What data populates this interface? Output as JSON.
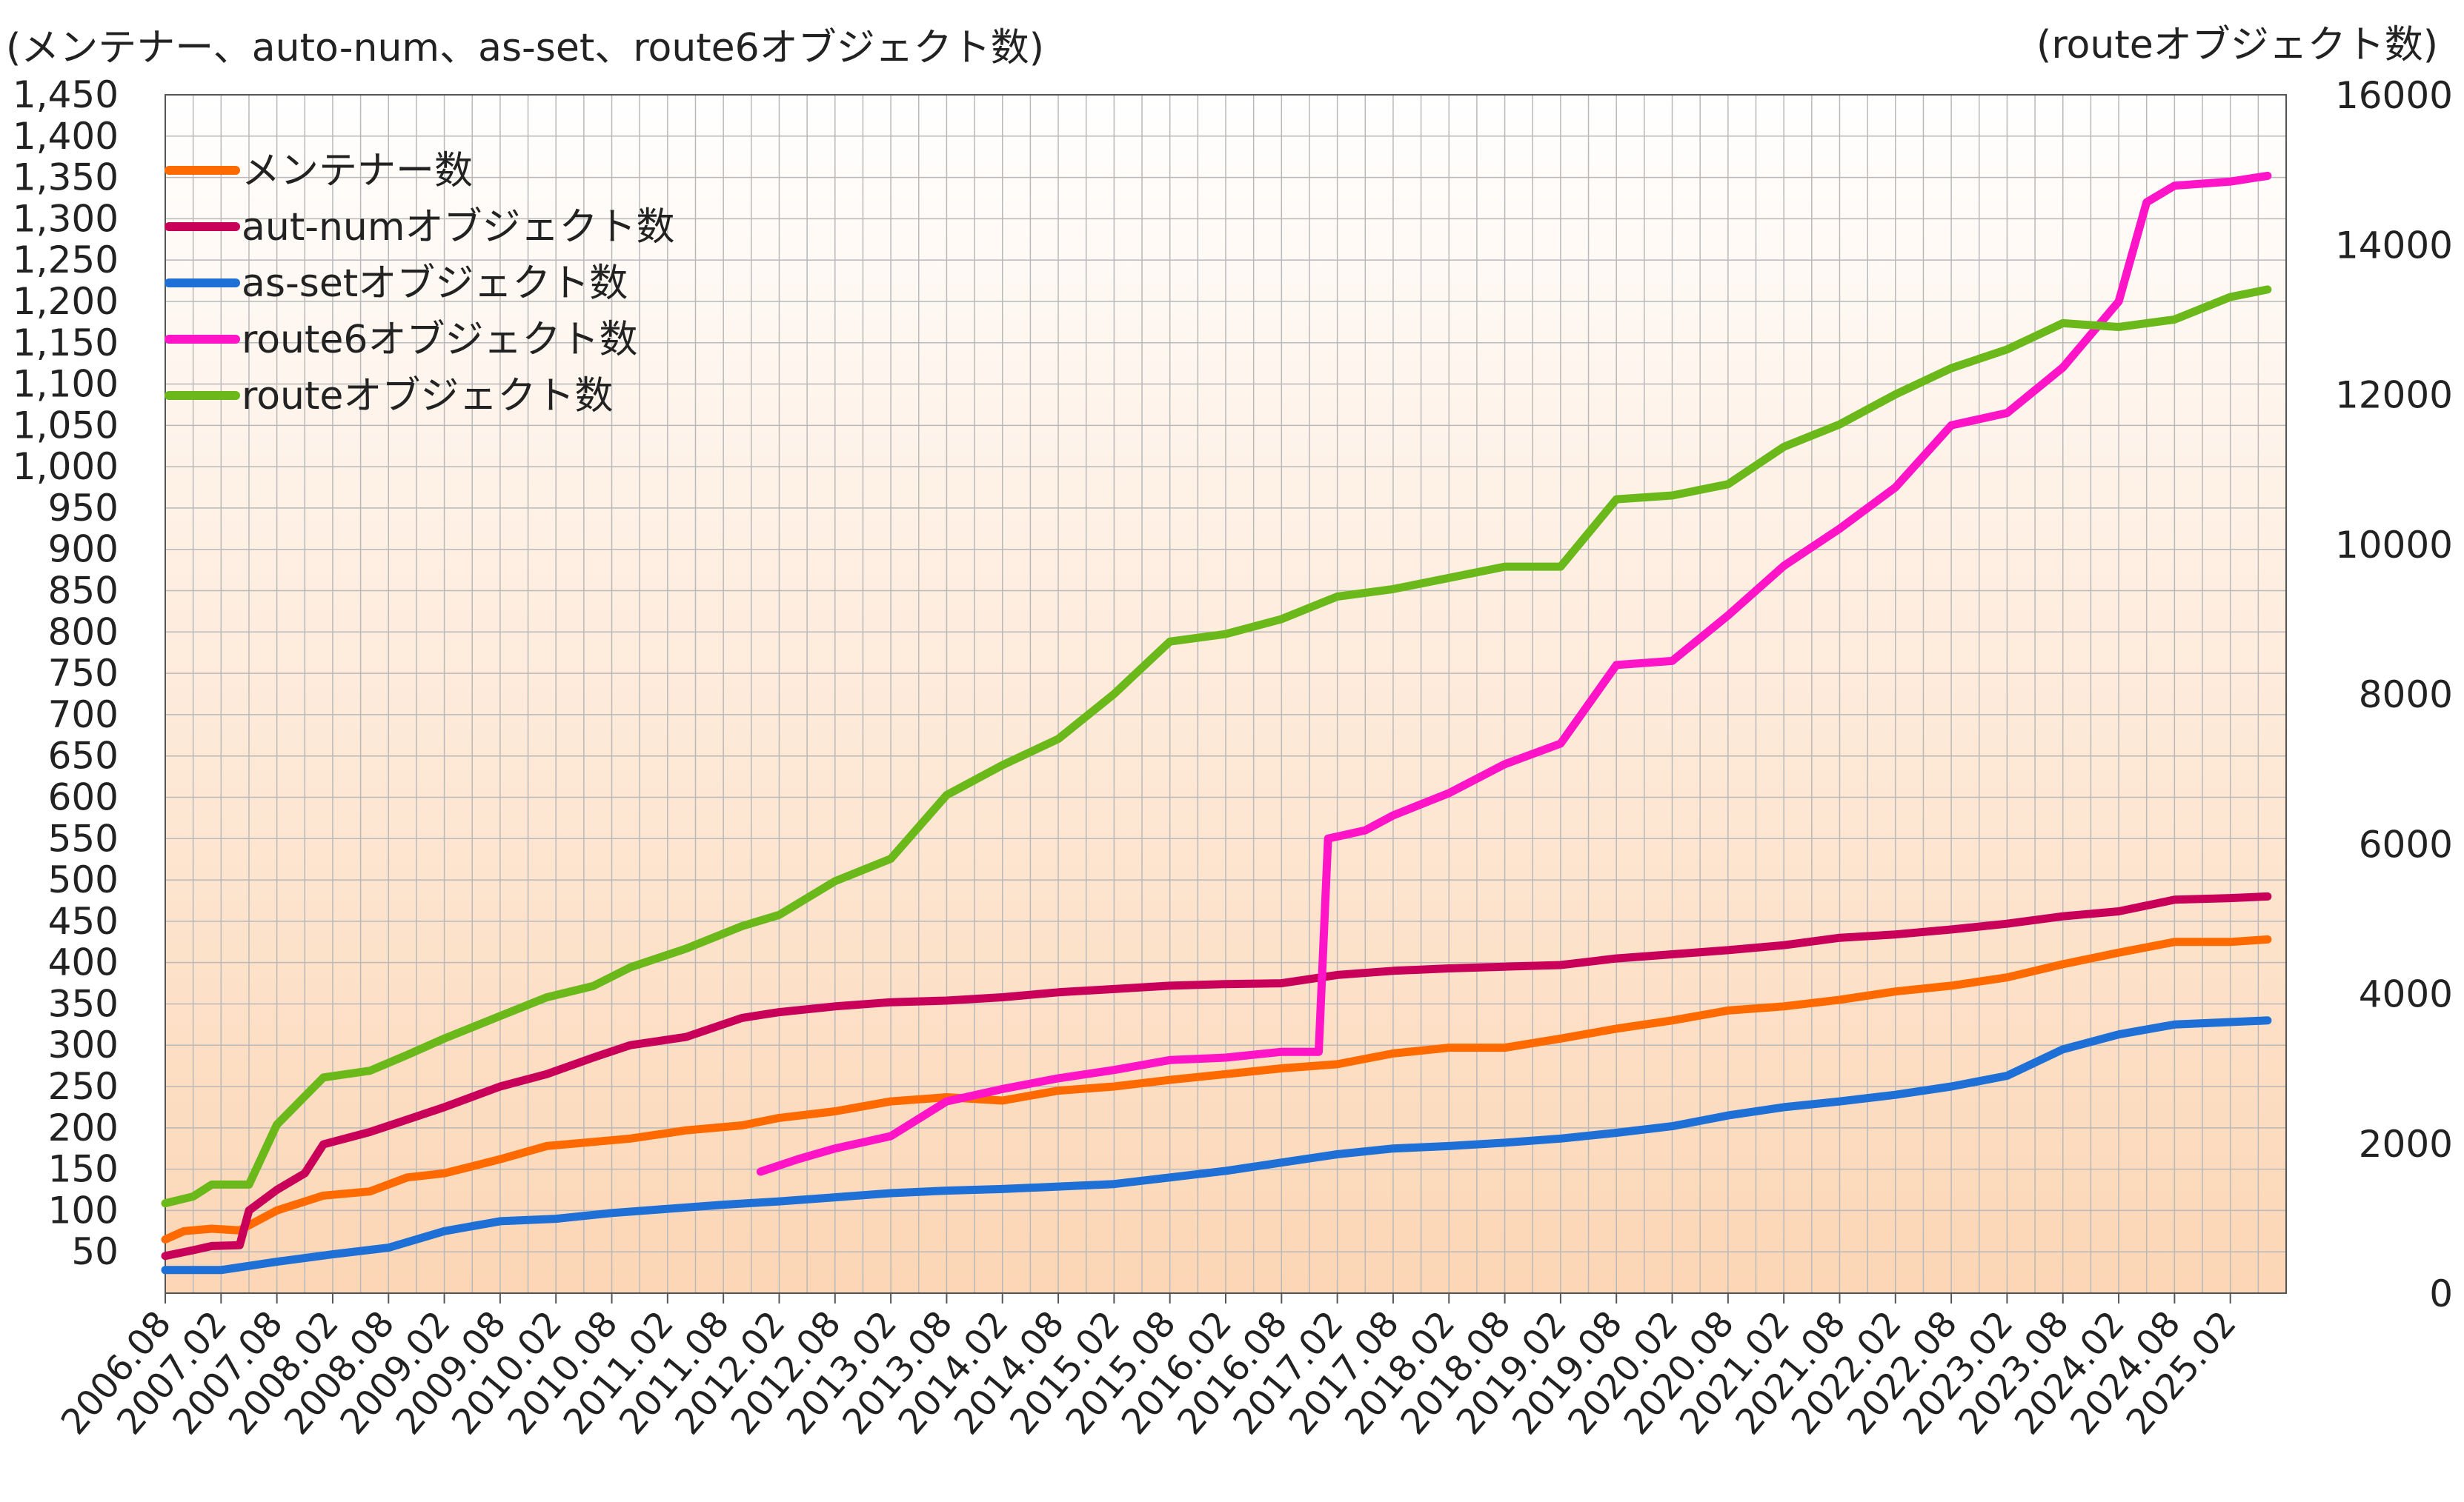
{
  "chart_data": {
    "type": "line",
    "left_axis_title": "(メンテナー、auto-num、as-set、route6オブジェクト数)",
    "right_axis_title": "(routeオブジェクト数)",
    "left_ylim": [
      0,
      1450
    ],
    "right_ylim": [
      0,
      16000
    ],
    "left_ticks": [
      "50",
      "100",
      "150",
      "200",
      "250",
      "300",
      "350",
      "400",
      "450",
      "500",
      "550",
      "600",
      "650",
      "700",
      "750",
      "800",
      "850",
      "900",
      "950",
      "1,000",
      "1,050",
      "1,100",
      "1,150",
      "1,200",
      "1,250",
      "1,300",
      "1,350",
      "1,400",
      "1,450"
    ],
    "left_tick_values": [
      50,
      100,
      150,
      200,
      250,
      300,
      350,
      400,
      450,
      500,
      550,
      600,
      650,
      700,
      750,
      800,
      850,
      900,
      950,
      1000,
      1050,
      1100,
      1150,
      1200,
      1250,
      1300,
      1350,
      1400,
      1450
    ],
    "right_ticks": [
      "0",
      "2000",
      "4000",
      "6000",
      "8000",
      "10000",
      "12000",
      "14000",
      "16000"
    ],
    "right_tick_values": [
      0,
      2000,
      4000,
      6000,
      8000,
      10000,
      12000,
      14000,
      16000
    ],
    "x_range": [
      "2006.08",
      "2025.08"
    ],
    "x_tick_labels": [
      "2006.08",
      "2007.02",
      "2007.08",
      "2008.02",
      "2008.08",
      "2009.02",
      "2009.08",
      "2010.02",
      "2010.08",
      "2011.02",
      "2011.08",
      "2012.02",
      "2012.08",
      "2013.02",
      "2013.08",
      "2014.02",
      "2014.08",
      "2015.02",
      "2015.08",
      "2016.02",
      "2016.08",
      "2017.02",
      "2017.08",
      "2018.02",
      "2018.08",
      "2019.02",
      "2019.08",
      "2020.02",
      "2020.08",
      "2021.02",
      "2021.08",
      "2022.02",
      "2022.08",
      "2023.02",
      "2023.08",
      "2024.02",
      "2024.08",
      "2025.02"
    ],
    "grid": true,
    "legend_position": "top-left",
    "series": [
      {
        "name": "メンテナー数",
        "axis": "left",
        "color": "#ff6a00",
        "points": [
          [
            "2006.08",
            65
          ],
          [
            "2006.10",
            75
          ],
          [
            "2007.01",
            78
          ],
          [
            "2007.04",
            76
          ],
          [
            "2007.08",
            100
          ],
          [
            "2008.01",
            118
          ],
          [
            "2008.06",
            123
          ],
          [
            "2008.10",
            140
          ],
          [
            "2009.02",
            145
          ],
          [
            "2009.08",
            162
          ],
          [
            "2010.01",
            178
          ],
          [
            "2010.06",
            183
          ],
          [
            "2010.10",
            187
          ],
          [
            "2011.04",
            197
          ],
          [
            "2011.10",
            203
          ],
          [
            "2012.02",
            212
          ],
          [
            "2012.08",
            220
          ],
          [
            "2013.02",
            232
          ],
          [
            "2013.08",
            237
          ],
          [
            "2014.02",
            233
          ],
          [
            "2014.08",
            245
          ],
          [
            "2015.02",
            250
          ],
          [
            "2015.08",
            258
          ],
          [
            "2016.02",
            265
          ],
          [
            "2016.08",
            272
          ],
          [
            "2017.02",
            277
          ],
          [
            "2017.08",
            290
          ],
          [
            "2018.02",
            297
          ],
          [
            "2018.08",
            297
          ],
          [
            "2019.02",
            308
          ],
          [
            "2019.08",
            320
          ],
          [
            "2020.02",
            330
          ],
          [
            "2020.08",
            342
          ],
          [
            "2021.02",
            347
          ],
          [
            "2021.08",
            355
          ],
          [
            "2022.02",
            365
          ],
          [
            "2022.08",
            372
          ],
          [
            "2023.02",
            382
          ],
          [
            "2023.08",
            398
          ],
          [
            "2024.02",
            412
          ],
          [
            "2024.08",
            425
          ],
          [
            "2025.02",
            425
          ],
          [
            "2025.06",
            428
          ]
        ]
      },
      {
        "name": "aut-numオブジェクト数",
        "axis": "left",
        "color": "#c8005a",
        "points": [
          [
            "2006.08",
            45
          ],
          [
            "2006.11",
            52
          ],
          [
            "2007.01",
            57
          ],
          [
            "2007.04",
            58
          ],
          [
            "2007.05",
            100
          ],
          [
            "2007.08",
            125
          ],
          [
            "2007.11",
            145
          ],
          [
            "2008.01",
            180
          ],
          [
            "2008.06",
            195
          ],
          [
            "2008.10",
            210
          ],
          [
            "2009.02",
            225
          ],
          [
            "2009.08",
            250
          ],
          [
            "2010.01",
            265
          ],
          [
            "2010.06",
            285
          ],
          [
            "2010.10",
            300
          ],
          [
            "2011.04",
            310
          ],
          [
            "2011.10",
            333
          ],
          [
            "2012.02",
            340
          ],
          [
            "2012.08",
            347
          ],
          [
            "2013.02",
            352
          ],
          [
            "2013.08",
            354
          ],
          [
            "2014.02",
            358
          ],
          [
            "2014.08",
            364
          ],
          [
            "2015.02",
            368
          ],
          [
            "2015.08",
            372
          ],
          [
            "2016.02",
            374
          ],
          [
            "2016.08",
            375
          ],
          [
            "2017.02",
            385
          ],
          [
            "2017.08",
            390
          ],
          [
            "2018.02",
            393
          ],
          [
            "2018.08",
            395
          ],
          [
            "2019.02",
            397
          ],
          [
            "2019.08",
            405
          ],
          [
            "2020.02",
            410
          ],
          [
            "2020.08",
            415
          ],
          [
            "2021.02",
            421
          ],
          [
            "2021.08",
            430
          ],
          [
            "2022.02",
            434
          ],
          [
            "2022.08",
            440
          ],
          [
            "2023.02",
            447
          ],
          [
            "2023.08",
            456
          ],
          [
            "2024.02",
            462
          ],
          [
            "2024.08",
            476
          ],
          [
            "2025.02",
            478
          ],
          [
            "2025.06",
            480
          ]
        ]
      },
      {
        "name": "as-setオブジェクト数",
        "axis": "left",
        "color": "#1e6fd6",
        "points": [
          [
            "2006.08",
            28
          ],
          [
            "2007.02",
            28
          ],
          [
            "2007.08",
            38
          ],
          [
            "2008.02",
            47
          ],
          [
            "2008.08",
            55
          ],
          [
            "2009.02",
            75
          ],
          [
            "2009.08",
            87
          ],
          [
            "2010.02",
            90
          ],
          [
            "2010.08",
            97
          ],
          [
            "2011.02",
            102
          ],
          [
            "2011.08",
            107
          ],
          [
            "2012.02",
            111
          ],
          [
            "2012.08",
            116
          ],
          [
            "2013.02",
            121
          ],
          [
            "2013.08",
            124
          ],
          [
            "2014.02",
            126
          ],
          [
            "2014.08",
            129
          ],
          [
            "2015.02",
            132
          ],
          [
            "2015.08",
            140
          ],
          [
            "2016.02",
            148
          ],
          [
            "2016.08",
            158
          ],
          [
            "2017.02",
            168
          ],
          [
            "2017.08",
            175
          ],
          [
            "2018.02",
            178
          ],
          [
            "2018.08",
            182
          ],
          [
            "2019.02",
            187
          ],
          [
            "2019.08",
            194
          ],
          [
            "2020.02",
            202
          ],
          [
            "2020.08",
            215
          ],
          [
            "2021.02",
            225
          ],
          [
            "2021.08",
            232
          ],
          [
            "2022.02",
            240
          ],
          [
            "2022.08",
            250
          ],
          [
            "2023.02",
            263
          ],
          [
            "2023.08",
            295
          ],
          [
            "2024.02",
            313
          ],
          [
            "2024.08",
            325
          ],
          [
            "2025.02",
            328
          ],
          [
            "2025.06",
            330
          ]
        ]
      },
      {
        "name": "route6オブジェクト数",
        "axis": "left",
        "color": "#ff14c8",
        "points": [
          [
            "2011.12",
            147
          ],
          [
            "2012.04",
            162
          ],
          [
            "2012.08",
            175
          ],
          [
            "2013.02",
            190
          ],
          [
            "2013.08",
            232
          ],
          [
            "2014.02",
            247
          ],
          [
            "2014.08",
            260
          ],
          [
            "2015.02",
            270
          ],
          [
            "2015.08",
            282
          ],
          [
            "2016.02",
            285
          ],
          [
            "2016.08",
            292
          ],
          [
            "2016.12",
            292
          ],
          [
            "2017.01",
            550
          ],
          [
            "2017.05",
            560
          ],
          [
            "2017.08",
            578
          ],
          [
            "2018.02",
            605
          ],
          [
            "2018.08",
            640
          ],
          [
            "2019.02",
            665
          ],
          [
            "2019.08",
            760
          ],
          [
            "2020.02",
            765
          ],
          [
            "2020.08",
            820
          ],
          [
            "2021.02",
            880
          ],
          [
            "2021.08",
            925
          ],
          [
            "2022.02",
            975
          ],
          [
            "2022.08",
            1050
          ],
          [
            "2023.02",
            1065
          ],
          [
            "2023.08",
            1120
          ],
          [
            "2024.02",
            1200
          ],
          [
            "2024.05",
            1320
          ],
          [
            "2024.08",
            1340
          ],
          [
            "2025.02",
            1345
          ],
          [
            "2025.06",
            1352
          ]
        ]
      },
      {
        "name": "routeオブジェクト数",
        "axis": "right",
        "color": "#6bb81a",
        "points": [
          [
            "2006.08",
            1200
          ],
          [
            "2006.11",
            1290
          ],
          [
            "2007.01",
            1450
          ],
          [
            "2007.05",
            1450
          ],
          [
            "2007.08",
            2250
          ],
          [
            "2008.01",
            2880
          ],
          [
            "2008.06",
            2970
          ],
          [
            "2008.10",
            3180
          ],
          [
            "2009.02",
            3400
          ],
          [
            "2009.08",
            3700
          ],
          [
            "2010.01",
            3950
          ],
          [
            "2010.06",
            4100
          ],
          [
            "2010.10",
            4350
          ],
          [
            "2011.04",
            4600
          ],
          [
            "2011.10",
            4900
          ],
          [
            "2012.02",
            5050
          ],
          [
            "2012.08",
            5500
          ],
          [
            "2013.02",
            5800
          ],
          [
            "2013.08",
            6650
          ],
          [
            "2014.02",
            7050
          ],
          [
            "2014.08",
            7400
          ],
          [
            "2015.02",
            8000
          ],
          [
            "2015.08",
            8700
          ],
          [
            "2016.02",
            8800
          ],
          [
            "2016.08",
            9000
          ],
          [
            "2017.02",
            9300
          ],
          [
            "2017.08",
            9400
          ],
          [
            "2018.02",
            9550
          ],
          [
            "2018.08",
            9700
          ],
          [
            "2019.02",
            9700
          ],
          [
            "2019.08",
            10600
          ],
          [
            "2020.02",
            10650
          ],
          [
            "2020.08",
            10800
          ],
          [
            "2021.02",
            11300
          ],
          [
            "2021.08",
            11600
          ],
          [
            "2022.02",
            12000
          ],
          [
            "2022.08",
            12350
          ],
          [
            "2023.02",
            12600
          ],
          [
            "2023.08",
            12950
          ],
          [
            "2024.02",
            12900
          ],
          [
            "2024.08",
            13000
          ],
          [
            "2025.02",
            13300
          ],
          [
            "2025.06",
            13400
          ]
        ]
      }
    ]
  }
}
